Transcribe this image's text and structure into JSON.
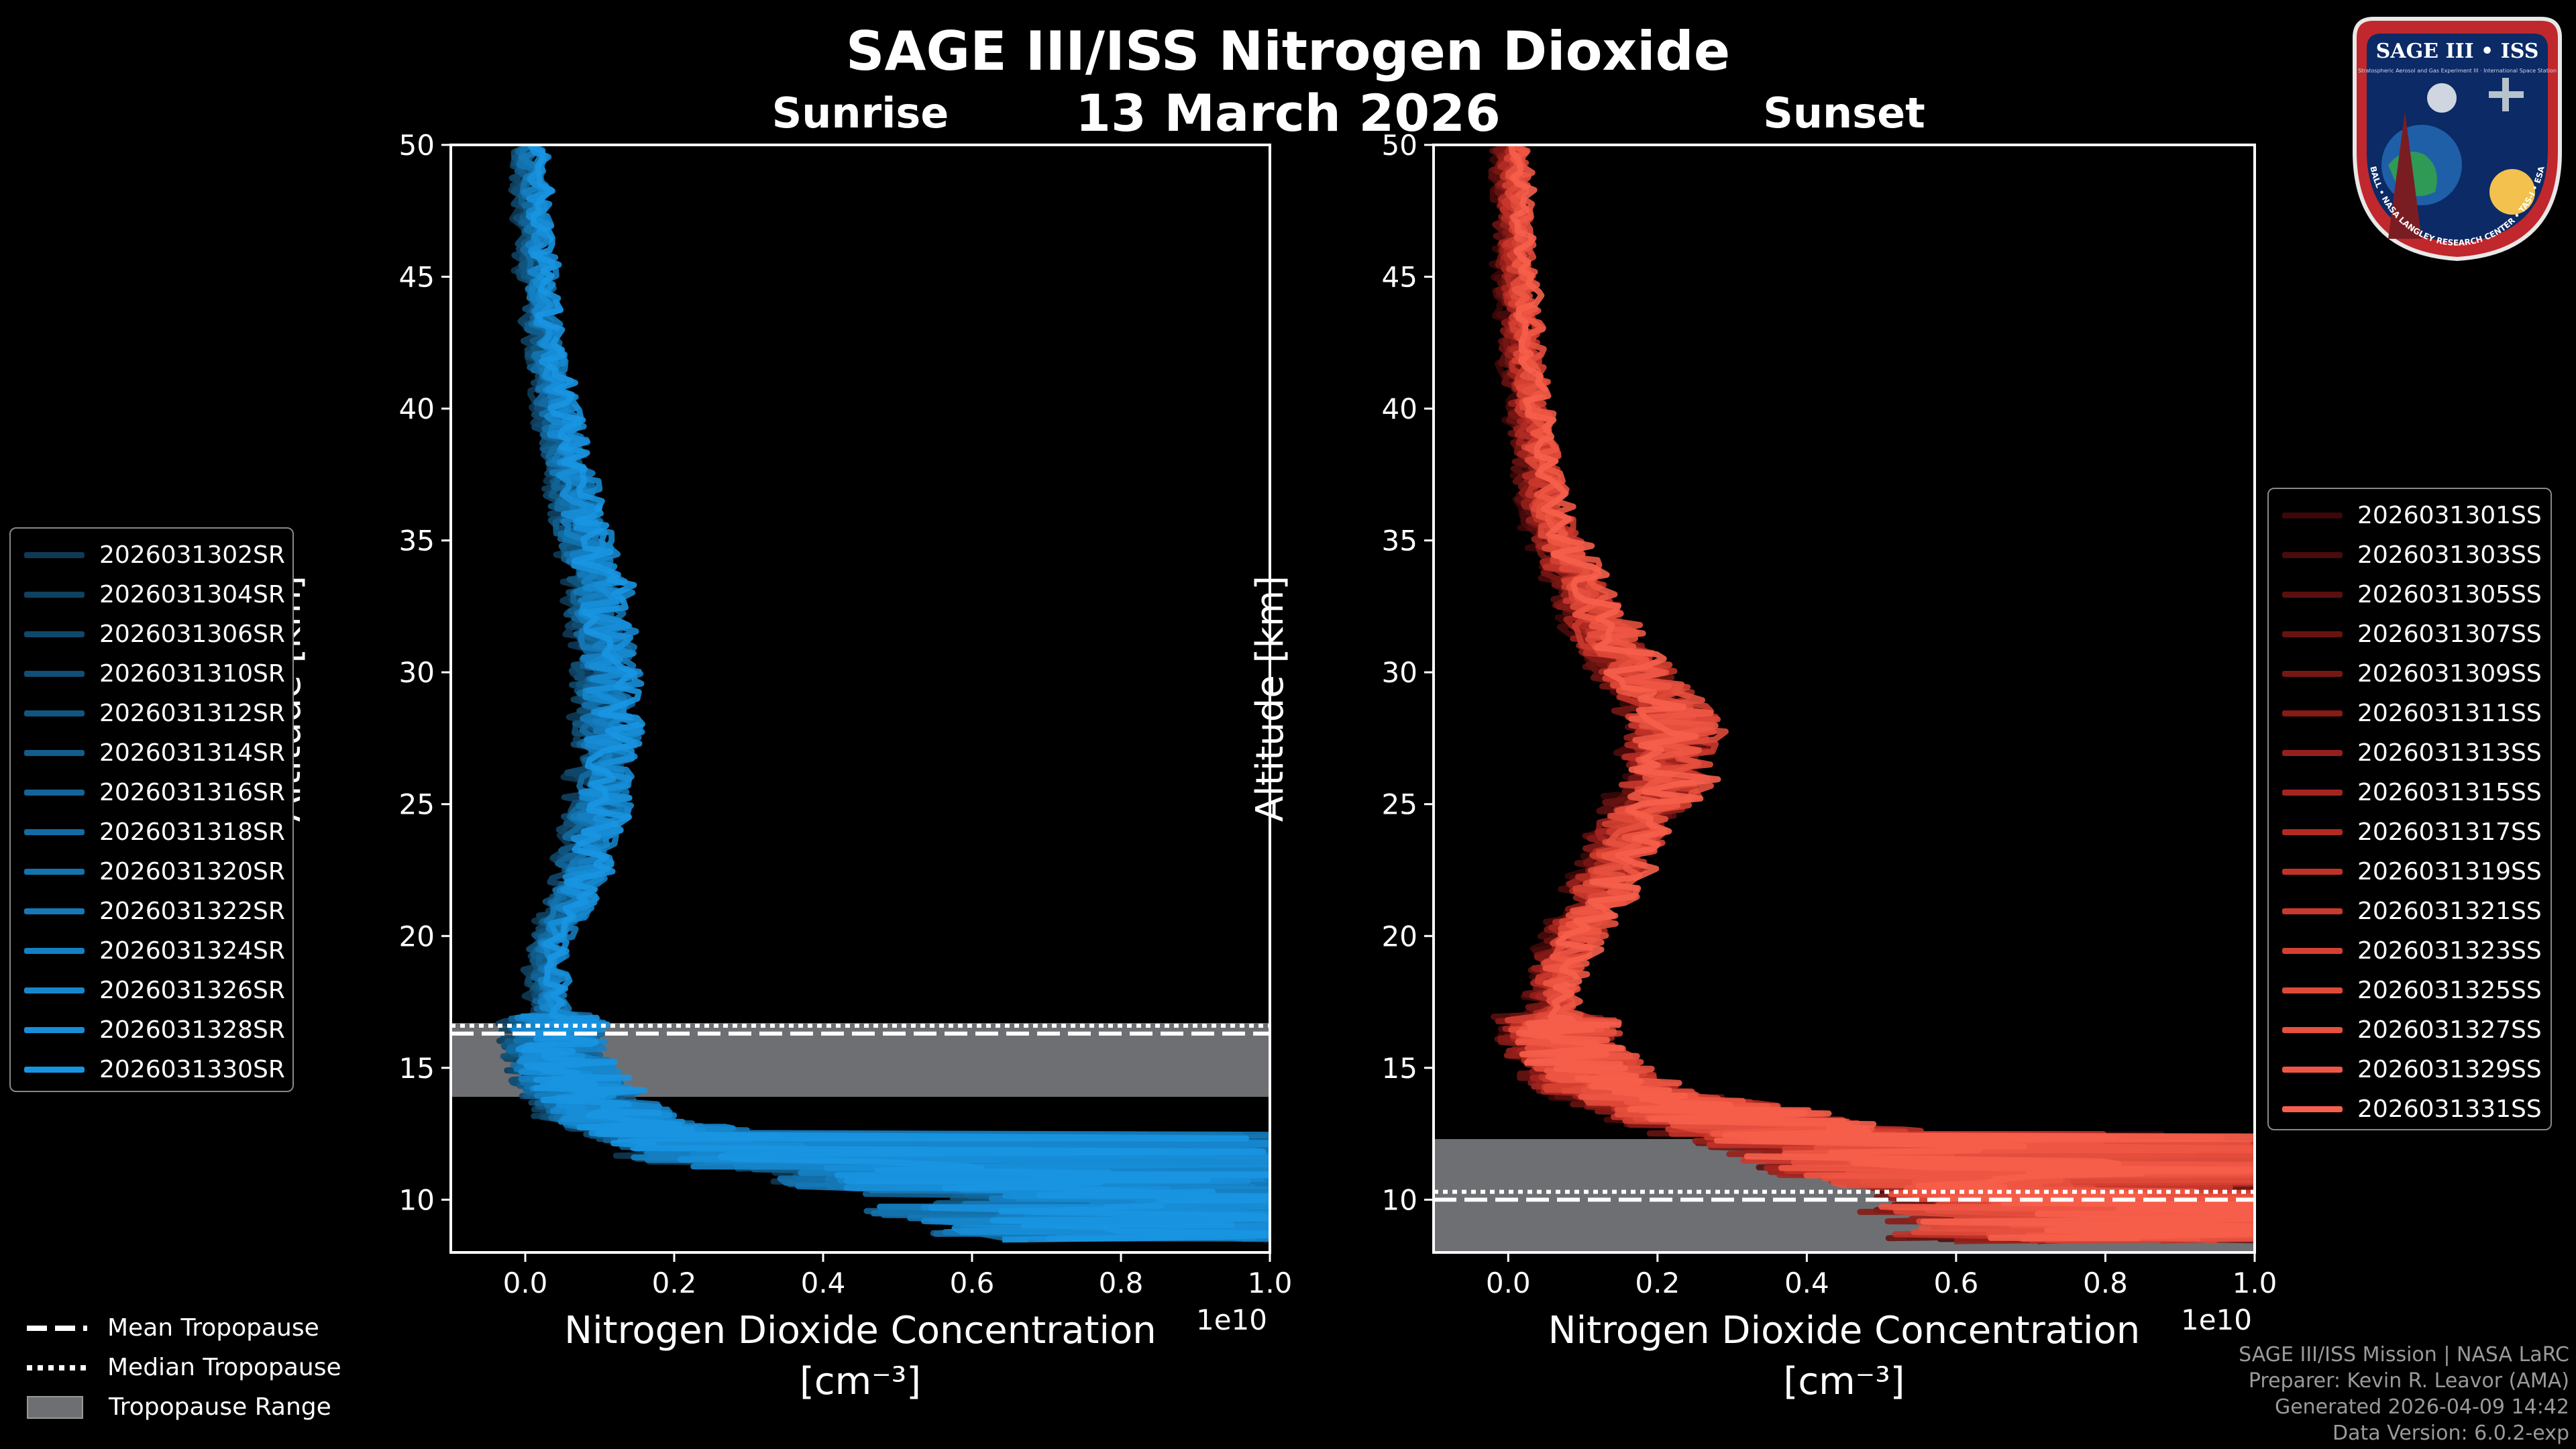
{
  "header": {
    "title": "SAGE III/ISS Nitrogen Dioxide",
    "date": "13 March 2026"
  },
  "badge": {
    "title": "SAGE III • ISS",
    "subtitle": "Stratospheric Aerosol and Gas Experiment III · International Space Station",
    "ring_text": "BALL • NASA LANGLEY RESEARCH CENTER • TAS-I • ESA"
  },
  "colors": {
    "sunrise": "#1b8fd2",
    "sunset": "#f0584a",
    "tropopause_band": "#6e6f73",
    "background": "#000000"
  },
  "chart_data": [
    {
      "type": "line",
      "panel": "Sunrise",
      "title": "Sunrise",
      "xlabel": "Nitrogen Dioxide Concentration",
      "xlabel_units": "[cm⁻³]",
      "ylabel": "Altitude [km]",
      "xlim": [
        -0.1,
        1.0
      ],
      "ylim": [
        8,
        50
      ],
      "x_offset_label": "1e10",
      "xticks": [
        0.0,
        0.2,
        0.4,
        0.6,
        0.8,
        1.0
      ],
      "xtick_labels": [
        "0.0",
        "0.2",
        "0.4",
        "0.6",
        "0.8",
        "1.0"
      ],
      "yticks": [
        10,
        15,
        20,
        25,
        30,
        35,
        40,
        45,
        50
      ],
      "ytick_labels": [
        "10",
        "15",
        "20",
        "25",
        "30",
        "35",
        "40",
        "45",
        "50"
      ],
      "legend_position": "left",
      "series_names": [
        "2026031302SR",
        "2026031304SR",
        "2026031306SR",
        "2026031310SR",
        "2026031312SR",
        "2026031314SR",
        "2026031316SR",
        "2026031318SR",
        "2026031320SR",
        "2026031322SR",
        "2026031324SR",
        "2026031326SR",
        "2026031328SR",
        "2026031330SR"
      ],
      "series_colors": [
        "#0f3a55",
        "#0f4160",
        "#10486b",
        "#114f76",
        "#115681",
        "#125d8c",
        "#136497",
        "#136ba2",
        "#1472ad",
        "#1579b8",
        "#1580c3",
        "#1687ce",
        "#178ed8",
        "#1895e2"
      ],
      "profile_km": [
        8.5,
        9,
        9.5,
        10,
        10.5,
        11,
        11.5,
        12,
        12.5,
        13,
        13.5,
        14,
        14.5,
        15,
        15.5,
        16,
        16.5,
        17,
        18,
        19,
        20,
        21,
        22,
        23,
        24,
        25,
        26,
        27,
        28,
        29,
        30,
        31,
        32,
        33,
        34,
        35,
        36,
        37,
        38,
        39,
        40,
        41,
        42,
        43,
        44,
        45,
        46,
        47,
        48,
        49,
        50
      ],
      "profile_mean": [
        0.9,
        0.92,
        0.75,
        0.9,
        0.6,
        0.6,
        0.3,
        0.25,
        0.2,
        0.12,
        0.1,
        0.08,
        0.06,
        0.05,
        0.04,
        0.04,
        0.04,
        0.04,
        0.03,
        0.03,
        0.04,
        0.06,
        0.07,
        0.08,
        0.09,
        0.1,
        0.1,
        0.11,
        0.11,
        0.11,
        0.11,
        0.11,
        0.1,
        0.1,
        0.09,
        0.08,
        0.07,
        0.065,
        0.055,
        0.05,
        0.04,
        0.035,
        0.03,
        0.025,
        0.02,
        0.018,
        0.015,
        0.012,
        0.01,
        0.008,
        0.006
      ],
      "mean_tropopause_km": 16.3,
      "median_tropopause_km": 16.6,
      "tropopause_range_km": [
        13.9,
        16.7
      ]
    },
    {
      "type": "line",
      "panel": "Sunset",
      "title": "Sunset",
      "xlabel": "Nitrogen Dioxide Concentration",
      "xlabel_units": "[cm⁻³]",
      "ylabel": "Altitude [km]",
      "xlim": [
        -0.1,
        1.0
      ],
      "ylim": [
        8,
        50
      ],
      "x_offset_label": "1e10",
      "xticks": [
        0.0,
        0.2,
        0.4,
        0.6,
        0.8,
        1.0
      ],
      "xtick_labels": [
        "0.0",
        "0.2",
        "0.4",
        "0.6",
        "0.8",
        "1.0"
      ],
      "yticks": [
        10,
        15,
        20,
        25,
        30,
        35,
        40,
        45,
        50
      ],
      "ytick_labels": [
        "10",
        "15",
        "20",
        "25",
        "30",
        "35",
        "40",
        "45",
        "50"
      ],
      "legend_position": "right",
      "series_names": [
        "2026031301SS",
        "2026031303SS",
        "2026031305SS",
        "2026031307SS",
        "2026031309SS",
        "2026031311SS",
        "2026031313SS",
        "2026031315SS",
        "2026031317SS",
        "2026031319SS",
        "2026031321SS",
        "2026031323SS",
        "2026031325SS",
        "2026031327SS",
        "2026031329SS",
        "2026031331SS"
      ],
      "series_colors": [
        "#3b0808",
        "#4a0b0b",
        "#590f0e",
        "#681311",
        "#771714",
        "#861b17",
        "#95201b",
        "#a4251f",
        "#b22b23",
        "#bf3228",
        "#ca392d",
        "#d44132",
        "#de4938",
        "#e6503e",
        "#ee5744",
        "#f65f4b"
      ],
      "profile_km": [
        8.5,
        9,
        9.5,
        10,
        10.5,
        11,
        11.5,
        12,
        12.5,
        13,
        13.5,
        14,
        14.5,
        15,
        15.5,
        16,
        16.5,
        17,
        18,
        19,
        20,
        21,
        22,
        23,
        24,
        25,
        26,
        27,
        28,
        29,
        30,
        31,
        32,
        33,
        34,
        35,
        36,
        37,
        38,
        39,
        40,
        41,
        42,
        43,
        44,
        45,
        46,
        47,
        48,
        49,
        50
      ],
      "profile_mean": [
        0.85,
        0.9,
        0.8,
        0.85,
        0.75,
        0.6,
        0.55,
        0.5,
        0.4,
        0.3,
        0.25,
        0.15,
        0.12,
        0.1,
        0.08,
        0.07,
        0.07,
        0.06,
        0.06,
        0.07,
        0.09,
        0.11,
        0.13,
        0.15,
        0.17,
        0.19,
        0.21,
        0.22,
        0.22,
        0.2,
        0.17,
        0.14,
        0.12,
        0.1,
        0.08,
        0.065,
        0.055,
        0.045,
        0.04,
        0.035,
        0.03,
        0.025,
        0.02,
        0.018,
        0.015,
        0.012,
        0.01,
        0.008,
        0.006,
        0.005,
        0.004
      ],
      "mean_tropopause_km": 10.0,
      "median_tropopause_km": 10.3,
      "tropopause_range_km": [
        8.0,
        12.3
      ]
    }
  ],
  "tropopause_legend": {
    "mean": "Mean Tropopause",
    "median": "Median Tropopause",
    "range": "Tropopause Range"
  },
  "credits": {
    "line1": "SAGE III/ISS Mission | NASA LaRC",
    "line2": "Preparer: Kevin R. Leavor (AMA)",
    "line3": "Generated 2026-04-09 14:42",
    "line4": "Data Version: 6.0.2-exp"
  }
}
